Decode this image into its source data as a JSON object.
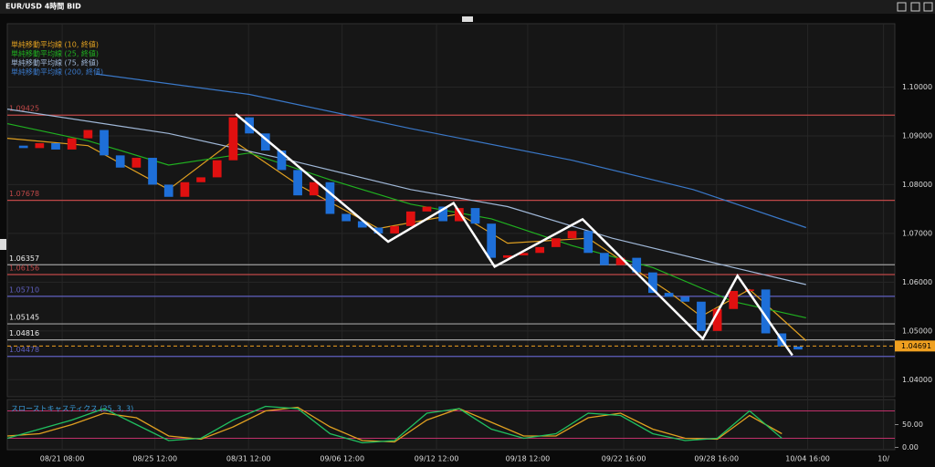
{
  "chart_data": {
    "type": "candlestick",
    "title": "EUR/USD 4時間 BID",
    "x": [
      0,
      2,
      4,
      6,
      8,
      10,
      12,
      14,
      16,
      18,
      20,
      22,
      24,
      26,
      28,
      30,
      32,
      34,
      36,
      38,
      40,
      42,
      44,
      46,
      48,
      50,
      52,
      54,
      56,
      58,
      60,
      62,
      64,
      66,
      68,
      70,
      72,
      74,
      76,
      78,
      80,
      82,
      84,
      86,
      88,
      90,
      92,
      94,
      96,
      98
    ],
    "close": [
      1.088,
      1.0875,
      1.0885,
      1.0872,
      1.0895,
      1.0912,
      1.086,
      1.0835,
      1.0855,
      1.08,
      1.0775,
      1.0805,
      1.0815,
      1.085,
      1.0938,
      1.0905,
      1.087,
      1.083,
      1.0778,
      1.0805,
      1.074,
      1.0725,
      1.0712,
      1.07,
      1.0715,
      1.0745,
      1.0755,
      1.0725,
      1.0752,
      1.072,
      1.065,
      1.0655,
      1.066,
      1.0672,
      1.069,
      1.0705,
      1.066,
      1.0635,
      1.065,
      1.062,
      1.0578,
      1.057,
      1.056,
      1.05,
      1.0545,
      1.0582,
      1.0585,
      1.0495,
      1.0468,
      1.0462
    ],
    "up_color": "#e01010",
    "down_color": "#1e6fd8",
    "xlim": [
      0,
      110
    ],
    "xticks": [
      {
        "value": 6.8,
        "label": "08/21 08:00"
      },
      {
        "value": 18.3,
        "label": "08/25 12:00"
      },
      {
        "value": 29.9,
        "label": "08/31 12:00"
      },
      {
        "value": 41.5,
        "label": "09/06 12:00"
      },
      {
        "value": 53.2,
        "label": "09/12 12:00"
      },
      {
        "value": 64.5,
        "label": "09/18 12:00"
      },
      {
        "value": 76.4,
        "label": "09/22 16:00"
      },
      {
        "value": 87.9,
        "label": "09/28 16:00"
      },
      {
        "value": 99.2,
        "label": "10/04 16:00"
      },
      {
        "value": 108.6,
        "label": "10/"
      }
    ],
    "ylim": [
      1.0365,
      1.113
    ],
    "yticks": [
      {
        "value": 1.04,
        "label": "1.04000"
      },
      {
        "value": 1.05,
        "label": "1.05000"
      },
      {
        "value": 1.06,
        "label": "1.06000"
      },
      {
        "value": 1.07,
        "label": "1.07000"
      },
      {
        "value": 1.08,
        "label": "1.08000"
      },
      {
        "value": 1.09,
        "label": "1.09000"
      },
      {
        "value": 1.1,
        "label": "1.10000"
      }
    ],
    "current_price": {
      "value": 1.04691,
      "label": "1.04691",
      "color": "#f0a020"
    },
    "levels": [
      {
        "value": 1.09425,
        "label": "1.09425",
        "color": "#c04848"
      },
      {
        "value": 1.07678,
        "label": "1.07678",
        "color": "#c04848"
      },
      {
        "value": 1.06357,
        "label": "1.06357",
        "color": "#a0a0a0"
      },
      {
        "value": 1.06156,
        "label": "1.06156",
        "color": "#c04848"
      },
      {
        "value": 1.0571,
        "label": "1.05710",
        "color": "#6060c0"
      },
      {
        "value": 1.05145,
        "label": "1.05145",
        "color": "#a0a0a0"
      },
      {
        "value": 1.04816,
        "label": "1.04816",
        "color": "#a0a0a0"
      },
      {
        "value": 1.04478,
        "label": "1.04478",
        "color": "#6060c0"
      }
    ],
    "series": [
      {
        "name": "単純移動平均線 (10, 終値)",
        "color": "#e0a020",
        "x": [
          0,
          10,
          20,
          28,
          36,
          46,
          56,
          62,
          72,
          82,
          86,
          92,
          99
        ],
        "values": [
          1.0895,
          1.088,
          1.079,
          1.089,
          1.08,
          1.071,
          1.074,
          1.068,
          1.069,
          1.058,
          1.053,
          1.0585,
          1.048
        ]
      },
      {
        "name": "単純移動平均線 (25, 終値)",
        "color": "#20b020",
        "x": [
          0,
          10,
          20,
          30,
          40,
          50,
          60,
          70,
          80,
          90,
          99
        ],
        "values": [
          1.0925,
          1.089,
          1.084,
          1.0865,
          1.081,
          1.076,
          1.073,
          1.0675,
          1.063,
          1.056,
          1.0527
        ]
      },
      {
        "name": "単純移動平均線 (75, 終値)",
        "color": "#a0b8d8",
        "x": [
          0,
          20,
          35,
          50,
          62,
          75,
          90,
          99
        ],
        "values": [
          1.0955,
          1.0905,
          1.085,
          1.079,
          1.0755,
          1.069,
          1.063,
          1.0595
        ]
      },
      {
        "name": "単純移動平均線 (200, 終値)",
        "color": "#3a78c8",
        "x": [
          11,
          30,
          50,
          70,
          85,
          99
        ],
        "values": [
          1.1027,
          1.0985,
          1.0915,
          1.085,
          1.079,
          1.0712
        ]
      }
    ],
    "zigzag": {
      "color": "#ffffff",
      "x": [
        28.3,
        47.2,
        55.3,
        60.4,
        71.3,
        86.2,
        90.5,
        97.3
      ],
      "values": [
        1.0945,
        1.0683,
        1.0762,
        1.0632,
        1.0729,
        1.0484,
        1.0613,
        1.045
      ]
    },
    "stochastic": {
      "title": "スローストキャスティクス (25, 3, 3)",
      "ylim": [
        -5,
        105
      ],
      "yticks": [
        {
          "value": 0,
          "label": "0.00"
        },
        {
          "value": 50,
          "label": "50.00"
        }
      ],
      "bands": [
        80,
        20
      ],
      "band_color": "#c0306a",
      "x": [
        0,
        4,
        8,
        12,
        16,
        20,
        24,
        28,
        32,
        36,
        40,
        44,
        48,
        52,
        56,
        60,
        64,
        68,
        72,
        76,
        80,
        84,
        88,
        92,
        96
      ],
      "k": {
        "color": "#20c060",
        "values": [
          20,
          40,
          60,
          85,
          50,
          15,
          20,
          60,
          90,
          85,
          30,
          10,
          15,
          75,
          85,
          40,
          20,
          30,
          75,
          70,
          30,
          15,
          20,
          80,
          20
        ]
      },
      "d": {
        "color": "#e0a020",
        "values": [
          25,
          30,
          50,
          75,
          65,
          25,
          18,
          45,
          80,
          88,
          45,
          15,
          12,
          60,
          85,
          55,
          25,
          25,
          65,
          75,
          40,
          20,
          18,
          70,
          30
        ]
      }
    }
  }
}
